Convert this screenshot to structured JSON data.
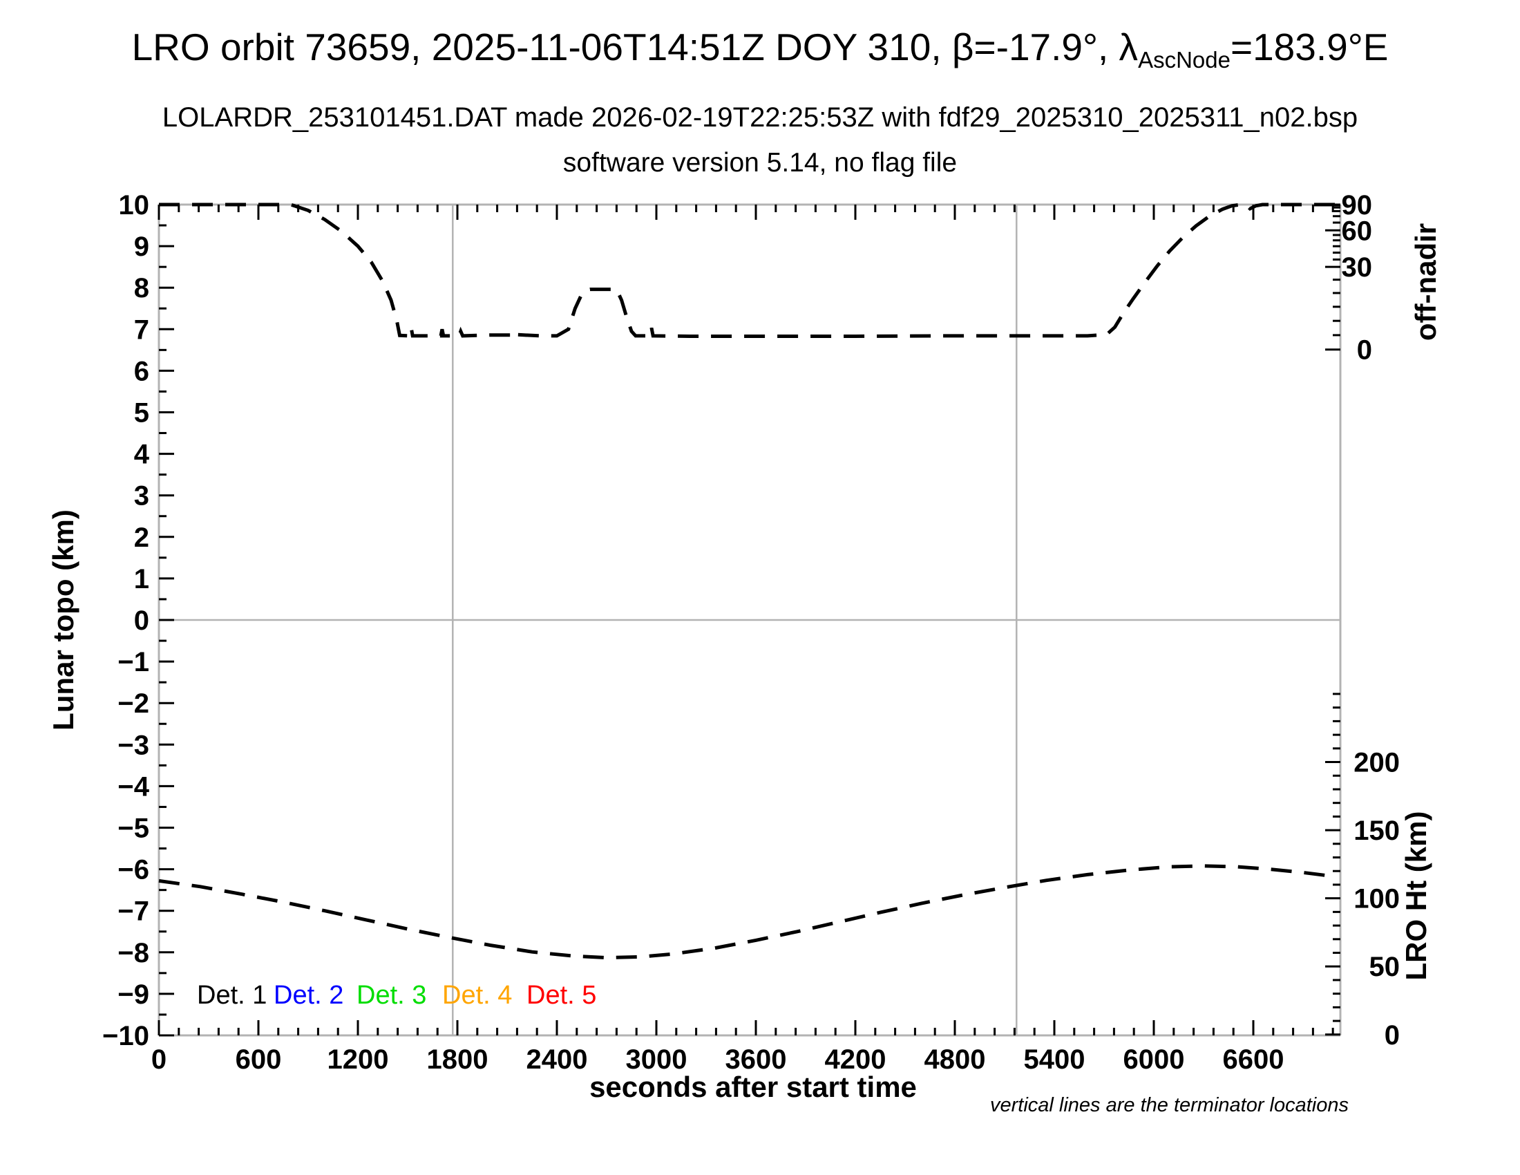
{
  "header": {
    "title_prefix": "LRO orbit 73659, 2025-11-06T14:51Z DOY 310, β=-17.9°, λ",
    "title_subscript": "AscNode",
    "title_suffix": "=183.9°E",
    "subtitle1": "LOLARDR_253101451.DAT made 2026-02-19T22:25:53Z with fdf29_2025310_2025311_n02.bsp",
    "subtitle2": "software version 5.14, no flag file"
  },
  "footnote": "vertical lines are the terminator locations",
  "legend": {
    "items": [
      {
        "label": "Det. 1",
        "color": "#000000"
      },
      {
        "label": "Det. 2",
        "color": "#0000ff"
      },
      {
        "label": "Det. 3",
        "color": "#00dd00"
      },
      {
        "label": "Det. 4",
        "color": "#ffa500"
      },
      {
        "label": "Det. 5",
        "color": "#ff0000"
      }
    ],
    "y_topo": -9.0
  },
  "chart_data": {
    "type": "line",
    "xlabel": "seconds after start time",
    "ylabel": "Lunar topo (km)",
    "y2label_top": "off-nadir",
    "y2label_bottom": "LRO Ht (km)",
    "xlim": [
      0,
      7125
    ],
    "ylim": [
      -10,
      10
    ],
    "x_major_tick_step": 600,
    "x_minor_tick_step": 120,
    "x_major_tick_labels": [
      "0",
      "600",
      "1200",
      "1800",
      "2400",
      "3000",
      "3600",
      "4200",
      "4800",
      "5400",
      "6000",
      "6600"
    ],
    "y_major_tick_step": 1,
    "y_minor_tick_step": 0.5,
    "grid": {
      "zero_line_topo": 0,
      "terminator_lines_x_s": [
        1772,
        5172
      ]
    },
    "frame_color": "#b3b3b3",
    "offnadir_axis": {
      "major_ticks": [
        {
          "deg": 90,
          "topo": 10.0
        },
        {
          "deg": 60,
          "topo": 9.38
        },
        {
          "deg": 30,
          "topo": 8.5
        },
        {
          "deg": 0,
          "topo": 6.51
        }
      ],
      "minor_deg_step": 5
    },
    "lro_ht_axis": {
      "major_ticks_km": [
        0,
        50,
        100,
        150,
        200
      ],
      "minor_step_km": 10,
      "minor_max_km": 250,
      "topo_at_0km": -9.98,
      "topo_per_km": 0.0328
    },
    "series": [
      {
        "name": "off-nadir angle",
        "color": "#000000",
        "dash": [
          30,
          18
        ],
        "points_t_topo": [
          [
            0,
            10
          ],
          [
            795,
            10
          ],
          [
            900,
            9.86
          ],
          [
            1000,
            9.64
          ],
          [
            1100,
            9.36
          ],
          [
            1200,
            9.0
          ],
          [
            1280,
            8.62
          ],
          [
            1350,
            8.15
          ],
          [
            1400,
            7.7
          ],
          [
            1435,
            7.2
          ],
          [
            1452,
            6.85
          ],
          [
            1515,
            6.84
          ],
          [
            1522,
            7.02
          ],
          [
            1530,
            6.84
          ],
          [
            1700,
            6.84
          ],
          [
            1708,
            7.0
          ],
          [
            1716,
            6.84
          ],
          [
            1810,
            6.84
          ],
          [
            1820,
            6.95
          ],
          [
            1832,
            6.84
          ],
          [
            2000,
            6.86
          ],
          [
            2120,
            6.86
          ],
          [
            2135,
            6.96
          ],
          [
            2150,
            6.87
          ],
          [
            2300,
            6.84
          ],
          [
            2400,
            6.84
          ],
          [
            2470,
            7.0
          ],
          [
            2510,
            7.5
          ],
          [
            2545,
            7.8
          ],
          [
            2575,
            7.94
          ],
          [
            2600,
            7.96
          ],
          [
            2760,
            7.96
          ],
          [
            2790,
            7.7
          ],
          [
            2820,
            7.3
          ],
          [
            2850,
            6.95
          ],
          [
            2875,
            6.84
          ],
          [
            2962,
            6.84
          ],
          [
            2971,
            7.03
          ],
          [
            2980,
            6.84
          ],
          [
            3200,
            6.83
          ],
          [
            3700,
            6.83
          ],
          [
            4200,
            6.83
          ],
          [
            4700,
            6.84
          ],
          [
            5200,
            6.84
          ],
          [
            5600,
            6.84
          ],
          [
            5715,
            6.87
          ],
          [
            5765,
            7.05
          ],
          [
            5815,
            7.38
          ],
          [
            5875,
            7.73
          ],
          [
            5945,
            8.12
          ],
          [
            6020,
            8.52
          ],
          [
            6095,
            8.88
          ],
          [
            6175,
            9.21
          ],
          [
            6255,
            9.49
          ],
          [
            6335,
            9.72
          ],
          [
            6415,
            9.89
          ],
          [
            6470,
            9.97
          ],
          [
            6520,
            10
          ],
          [
            6555,
            10
          ],
          [
            6580,
            9.9
          ],
          [
            6615,
            9.97
          ],
          [
            6655,
            10
          ],
          [
            7120,
            10
          ]
        ]
      },
      {
        "name": "LRO height",
        "color": "#000000",
        "dash": [
          30,
          18
        ],
        "points_t_topo": [
          [
            0,
            -6.28
          ],
          [
            250,
            -6.42
          ],
          [
            500,
            -6.6
          ],
          [
            750,
            -6.79
          ],
          [
            1000,
            -7.0
          ],
          [
            1250,
            -7.22
          ],
          [
            1500,
            -7.44
          ],
          [
            1750,
            -7.64
          ],
          [
            2000,
            -7.83
          ],
          [
            2250,
            -7.99
          ],
          [
            2500,
            -8.09
          ],
          [
            2700,
            -8.13
          ],
          [
            2900,
            -8.11
          ],
          [
            3100,
            -8.04
          ],
          [
            3350,
            -7.9
          ],
          [
            3600,
            -7.71
          ],
          [
            3850,
            -7.5
          ],
          [
            4100,
            -7.27
          ],
          [
            4350,
            -7.04
          ],
          [
            4600,
            -6.82
          ],
          [
            4850,
            -6.62
          ],
          [
            5100,
            -6.44
          ],
          [
            5350,
            -6.27
          ],
          [
            5600,
            -6.13
          ],
          [
            5850,
            -6.02
          ],
          [
            6100,
            -5.94
          ],
          [
            6300,
            -5.92
          ],
          [
            6500,
            -5.94
          ],
          [
            6700,
            -6.0
          ],
          [
            6900,
            -6.08
          ],
          [
            7060,
            -6.16
          ]
        ]
      }
    ]
  }
}
